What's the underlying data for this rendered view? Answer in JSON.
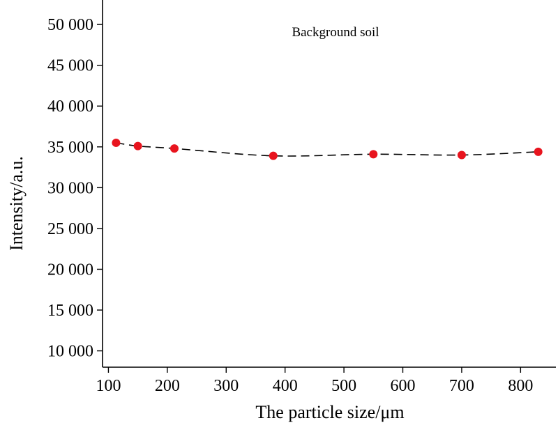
{
  "chart_data": {
    "type": "scatter",
    "xlabel": "The particle size/μm",
    "ylabel": "Intensity/a.u.",
    "annotation": "Background  soil",
    "xlim": [
      90,
      860
    ],
    "ylim": [
      8000,
      53000
    ],
    "x_ticks": [
      100,
      200,
      300,
      400,
      500,
      600,
      700,
      800
    ],
    "y_ticks": [
      10000,
      15000,
      20000,
      25000,
      30000,
      35000,
      40000,
      45000,
      50000
    ],
    "x_tick_labels": [
      "100",
      "200",
      "300",
      "400",
      "500",
      "600",
      "700",
      "800"
    ],
    "y_tick_labels": [
      "10 000",
      "15 000",
      "20 000",
      "25 000",
      "30 000",
      "35 000",
      "40 000",
      "45 000",
      "50 000"
    ],
    "grid": false,
    "legend": "none",
    "series": [
      {
        "marker_color": "#e8141e",
        "line_style": "dashed",
        "line_color": "#000000",
        "x": [
          113,
          150,
          212,
          380,
          550,
          700,
          830
        ],
        "y": [
          35500,
          35100,
          34800,
          33900,
          34100,
          34000,
          34400
        ]
      }
    ]
  }
}
